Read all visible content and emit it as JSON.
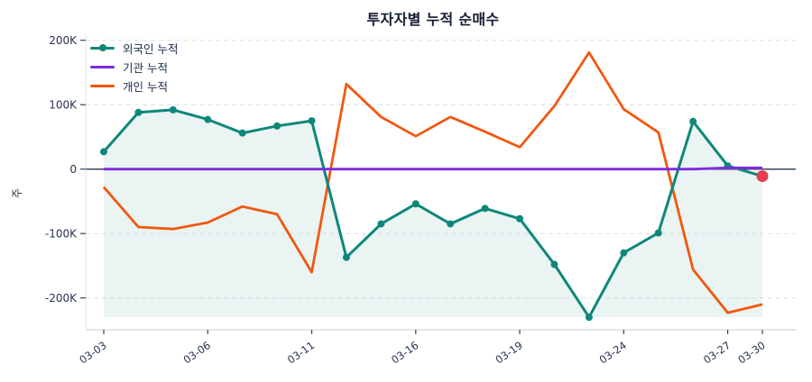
{
  "chart_data": {
    "type": "line",
    "title": "투자자별 누적 순매수",
    "ylabel": "주",
    "xlabel": "",
    "grid": "horizontal-dashed",
    "legend_position": "top-left-inside",
    "ylim": [
      -250,
      210
    ],
    "x": [
      "03-03",
      "03-04",
      "03-05",
      "03-06",
      "03-09",
      "03-10",
      "03-11",
      "03-12",
      "03-13",
      "03-16",
      "03-17",
      "03-18",
      "03-19",
      "03-20",
      "03-23",
      "03-24",
      "03-25",
      "03-26",
      "03-27",
      "03-30"
    ],
    "x_tick_labels": [
      "03-03",
      "03-06",
      "03-11",
      "03-16",
      "03-19",
      "03-24",
      "03-27",
      "03-30"
    ],
    "x_tick_indices": [
      0,
      3,
      6,
      9,
      12,
      15,
      18,
      19
    ],
    "y_tick_values": [
      200,
      100,
      0,
      -100,
      -200
    ],
    "y_tick_labels": [
      "200K",
      "100K",
      "0",
      "-100K",
      "-200K"
    ],
    "unit_scale": "thousands (K)",
    "series": [
      {
        "name": "외국인 누적",
        "color": "#0e8779",
        "marker": "circle",
        "area_fill": true,
        "fill_baseline": "series-min",
        "fill_color": "rgba(15,134,120,0.09)",
        "values": [
          27,
          88,
          92,
          77,
          56,
          67,
          75,
          -137,
          -85,
          -54,
          -85,
          -61,
          -77,
          -148,
          -230,
          -130,
          -99,
          74,
          5,
          -11
        ]
      },
      {
        "name": "기관 누적",
        "color": "#7e2be0",
        "marker": "none",
        "values": [
          0,
          0,
          0,
          0,
          0,
          0,
          0,
          0,
          0,
          0,
          0,
          0,
          0,
          0,
          0,
          0,
          0,
          0,
          2,
          2
        ]
      },
      {
        "name": "개인 누적",
        "color": "#f2570f",
        "marker": "none",
        "values": [
          -28,
          -90,
          -93,
          -83,
          -58,
          -70,
          -160,
          132,
          81,
          51,
          81,
          58,
          34,
          98,
          181,
          93,
          57,
          -156,
          -223,
          -210
        ]
      }
    ],
    "annotations": [
      {
        "type": "end-point-dot",
        "series": "외국인 누적",
        "index": 19,
        "value": -11,
        "color": "#e83d4c"
      }
    ],
    "colors": {
      "zero_line": "#3a4660",
      "grid_line": "#d9dde3",
      "axis_spine": "#d3d7dd",
      "tick_mark": "#3b4358",
      "text": "#263250",
      "title_text": "#131b33",
      "background": "#ffffff"
    }
  }
}
